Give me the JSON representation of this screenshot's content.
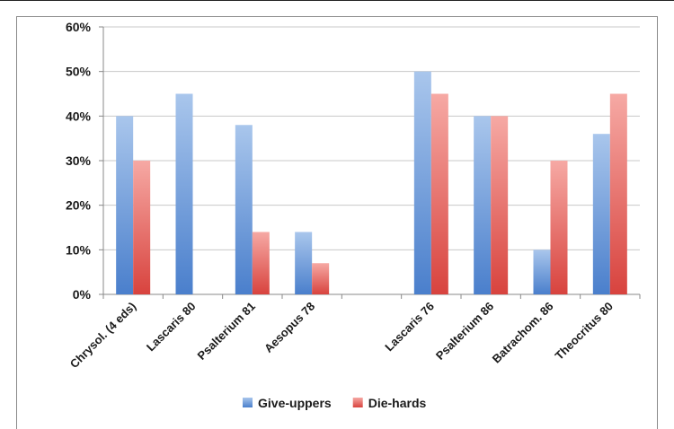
{
  "chart_data": {
    "type": "bar",
    "categories": [
      "Chrysol. (4 eds)",
      "Lascaris 80",
      "Psalterium 81",
      "Aesopus 78",
      "",
      "Lascaris 76",
      "Psalterium 86",
      "Batrachom. 86",
      "Theocritus 80"
    ],
    "series": [
      {
        "name": "Give-uppers",
        "values": [
          40,
          45,
          38,
          14,
          null,
          50,
          40,
          10,
          36
        ]
      },
      {
        "name": "Die-hards",
        "values": [
          30,
          null,
          14,
          7,
          null,
          45,
          40,
          30,
          45
        ]
      }
    ],
    "ylim": [
      0,
      60
    ],
    "yticks": [
      "0%",
      "10%",
      "20%",
      "30%",
      "40%",
      "50%",
      "60%"
    ],
    "grid": true,
    "legend": "bottom",
    "colors": {
      "Give-uppers": {
        "top": "#a9c6ec",
        "bottom": "#4a7fcc"
      },
      "Die-hards": {
        "top": "#f6a9a4",
        "bottom": "#d8433e"
      }
    }
  }
}
